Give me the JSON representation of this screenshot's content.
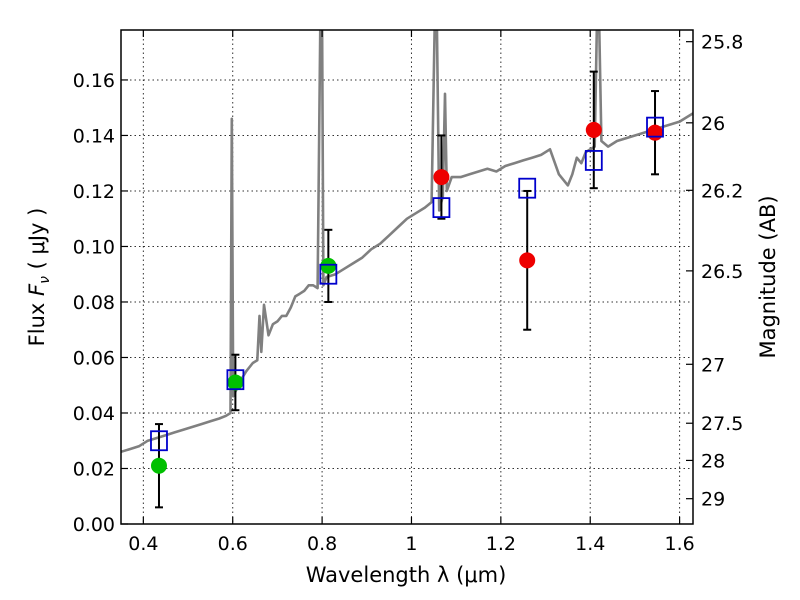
{
  "chart_data": {
    "type": "scatter",
    "xlabel": "Wavelength  λ (μm)",
    "ylabel_left": {
      "prefix": "Flux ",
      "symbol": "F",
      "sub": "ν",
      "unit": " ( μJy )"
    },
    "ylabel_right": "Magnitude (AB)",
    "xlim": [
      0.35,
      1.63
    ],
    "ylim": [
      0.0,
      0.178
    ],
    "grid": true,
    "x_ticks": [
      {
        "value": 0.4,
        "label": "0.4"
      },
      {
        "value": 0.6,
        "label": "0.6"
      },
      {
        "value": 0.8,
        "label": "0.8"
      },
      {
        "value": 1.0,
        "label": "1"
      },
      {
        "value": 1.2,
        "label": "1.2"
      },
      {
        "value": 1.4,
        "label": "1.4"
      },
      {
        "value": 1.6,
        "label": "1.6"
      }
    ],
    "y_ticks": [
      {
        "value": 0.0,
        "label": "0.00"
      },
      {
        "value": 0.02,
        "label": "0.02"
      },
      {
        "value": 0.04,
        "label": "0.04"
      },
      {
        "value": 0.06,
        "label": "0.06"
      },
      {
        "value": 0.08,
        "label": "0.08"
      },
      {
        "value": 0.1,
        "label": "0.10"
      },
      {
        "value": 0.12,
        "label": "0.12"
      },
      {
        "value": 0.14,
        "label": "0.14"
      },
      {
        "value": 0.16,
        "label": "0.16"
      }
    ],
    "right_ticks": [
      {
        "mag": 25.8,
        "label": "25.8"
      },
      {
        "mag": 26.0,
        "label": "26"
      },
      {
        "mag": 26.2,
        "label": "26.2"
      },
      {
        "mag": 26.5,
        "label": "26.5"
      },
      {
        "mag": 27.0,
        "label": "27"
      },
      {
        "mag": 27.5,
        "label": "27.5"
      },
      {
        "mag": 28.0,
        "label": "28"
      },
      {
        "mag": 29.0,
        "label": "29"
      }
    ],
    "model_spectrum": {
      "color": "#808080",
      "points": [
        [
          0.35,
          0.026
        ],
        [
          0.37,
          0.027
        ],
        [
          0.39,
          0.028
        ],
        [
          0.41,
          0.03
        ],
        [
          0.43,
          0.031
        ],
        [
          0.45,
          0.032
        ],
        [
          0.47,
          0.033
        ],
        [
          0.49,
          0.034
        ],
        [
          0.51,
          0.035
        ],
        [
          0.53,
          0.036
        ],
        [
          0.55,
          0.037
        ],
        [
          0.57,
          0.038
        ],
        [
          0.585,
          0.039
        ],
        [
          0.595,
          0.04
        ],
        [
          0.598,
          0.146
        ],
        [
          0.601,
          0.046
        ],
        [
          0.607,
          0.048
        ],
        [
          0.615,
          0.051
        ],
        [
          0.63,
          0.055
        ],
        [
          0.645,
          0.058
        ],
        [
          0.655,
          0.059
        ],
        [
          0.66,
          0.075
        ],
        [
          0.664,
          0.062
        ],
        [
          0.67,
          0.079
        ],
        [
          0.68,
          0.068
        ],
        [
          0.69,
          0.072
        ],
        [
          0.7,
          0.073
        ],
        [
          0.71,
          0.075
        ],
        [
          0.72,
          0.075
        ],
        [
          0.73,
          0.078
        ],
        [
          0.74,
          0.082
        ],
        [
          0.75,
          0.083
        ],
        [
          0.76,
          0.084
        ],
        [
          0.77,
          0.086
        ],
        [
          0.78,
          0.086
        ],
        [
          0.79,
          0.085
        ],
        [
          0.796,
          0.18
        ],
        [
          0.8,
          0.18
        ],
        [
          0.803,
          0.086
        ],
        [
          0.81,
          0.089
        ],
        [
          0.83,
          0.09
        ],
        [
          0.85,
          0.092
        ],
        [
          0.87,
          0.094
        ],
        [
          0.89,
          0.096
        ],
        [
          0.91,
          0.099
        ],
        [
          0.93,
          0.101
        ],
        [
          0.95,
          0.104
        ],
        [
          0.97,
          0.107
        ],
        [
          0.99,
          0.11
        ],
        [
          1.01,
          0.112
        ],
        [
          1.03,
          0.114
        ],
        [
          1.045,
          0.116
        ],
        [
          1.052,
          0.18
        ],
        [
          1.057,
          0.18
        ],
        [
          1.062,
          0.113
        ],
        [
          1.07,
          0.118
        ],
        [
          1.075,
          0.155
        ],
        [
          1.079,
          0.12
        ],
        [
          1.09,
          0.125
        ],
        [
          1.11,
          0.125
        ],
        [
          1.13,
          0.126
        ],
        [
          1.15,
          0.127
        ],
        [
          1.17,
          0.128
        ],
        [
          1.19,
          0.127
        ],
        [
          1.21,
          0.129
        ],
        [
          1.23,
          0.13
        ],
        [
          1.25,
          0.131
        ],
        [
          1.27,
          0.132
        ],
        [
          1.29,
          0.133
        ],
        [
          1.31,
          0.135
        ],
        [
          1.33,
          0.126
        ],
        [
          1.35,
          0.122
        ],
        [
          1.36,
          0.126
        ],
        [
          1.37,
          0.132
        ],
        [
          1.38,
          0.13
        ],
        [
          1.39,
          0.134
        ],
        [
          1.41,
          0.136
        ],
        [
          1.415,
          0.18
        ],
        [
          1.42,
          0.18
        ],
        [
          1.425,
          0.138
        ],
        [
          1.44,
          0.136
        ],
        [
          1.46,
          0.138
        ],
        [
          1.48,
          0.139
        ],
        [
          1.5,
          0.14
        ],
        [
          1.52,
          0.141
        ],
        [
          1.54,
          0.142
        ],
        [
          1.56,
          0.143
        ],
        [
          1.58,
          0.144
        ],
        [
          1.6,
          0.145
        ],
        [
          1.63,
          0.148
        ]
      ]
    },
    "series": [
      {
        "marker": "circle",
        "color": "#00c000",
        "points": [
          {
            "x": 0.435,
            "y": 0.021,
            "err": 0.015
          },
          {
            "x": 0.606,
            "y": 0.051,
            "err": 0.01
          },
          {
            "x": 0.814,
            "y": 0.093,
            "err": 0.013
          }
        ]
      },
      {
        "marker": "circle",
        "color": "#ee0000",
        "points": [
          {
            "x": 1.067,
            "y": 0.125,
            "err": 0.015
          },
          {
            "x": 1.259,
            "y": 0.095,
            "err": 0.025
          },
          {
            "x": 1.408,
            "y": 0.142,
            "err": 0.021
          },
          {
            "x": 1.545,
            "y": 0.141,
            "err": 0.015
          }
        ]
      },
      {
        "marker": "open-square",
        "color": "#0000cc",
        "points": [
          {
            "x": 0.435,
            "y": 0.03
          },
          {
            "x": 0.606,
            "y": 0.052
          },
          {
            "x": 0.814,
            "y": 0.09
          },
          {
            "x": 1.067,
            "y": 0.114
          },
          {
            "x": 1.259,
            "y": 0.121
          },
          {
            "x": 1.408,
            "y": 0.131
          },
          {
            "x": 1.545,
            "y": 0.143
          }
        ]
      }
    ]
  }
}
